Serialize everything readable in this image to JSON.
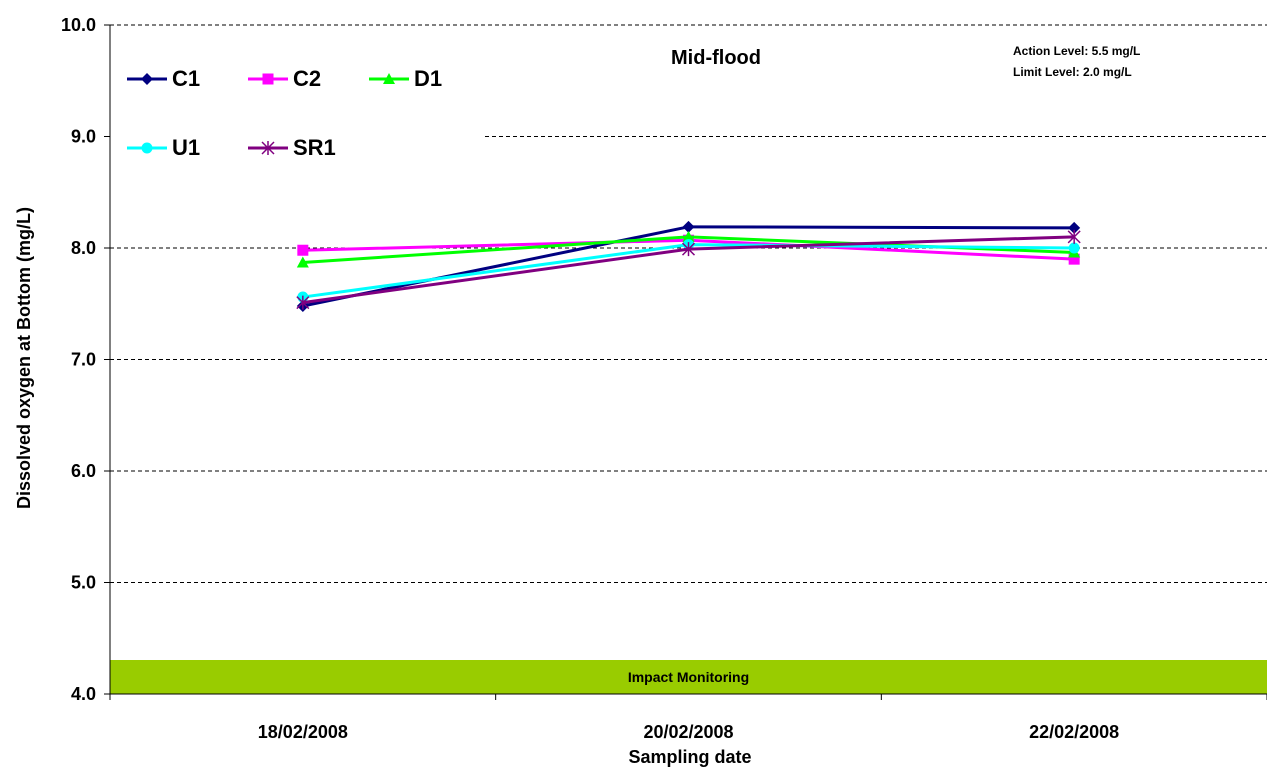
{
  "chart_data": {
    "type": "line",
    "title": "Mid-flood",
    "annotations": [
      "Action Level: 5.5 mg/L",
      "Limit Level: 2.0 mg/L"
    ],
    "band_label": "Impact Monitoring",
    "xlabel": "Sampling date",
    "ylabel": "Dissolved oxygen at Bottom (mg/L)",
    "ylim": [
      4.0,
      10.0
    ],
    "yticks": [
      "4.0",
      "5.0",
      "6.0",
      "7.0",
      "8.0",
      "9.0",
      "10.0"
    ],
    "categories": [
      "18/02/2008",
      "20/02/2008",
      "22/02/2008"
    ],
    "grid": true,
    "legend_position": "top-left",
    "series": [
      {
        "name": "C1",
        "color": "#000080",
        "marker": "diamond",
        "values": [
          7.48,
          8.19,
          8.18
        ]
      },
      {
        "name": "C2",
        "color": "#FF00FF",
        "marker": "square",
        "values": [
          7.98,
          8.07,
          7.9
        ]
      },
      {
        "name": "D1",
        "color": "#00FF00",
        "marker": "triangle",
        "values": [
          7.87,
          8.1,
          7.96
        ]
      },
      {
        "name": "U1",
        "color": "#00FFFF",
        "marker": "circle",
        "values": [
          7.56,
          8.03,
          8.0
        ]
      },
      {
        "name": "SR1",
        "color": "#800080",
        "marker": "asterisk",
        "values": [
          7.51,
          7.99,
          8.1
        ]
      }
    ],
    "band_color": "#99CC00"
  }
}
